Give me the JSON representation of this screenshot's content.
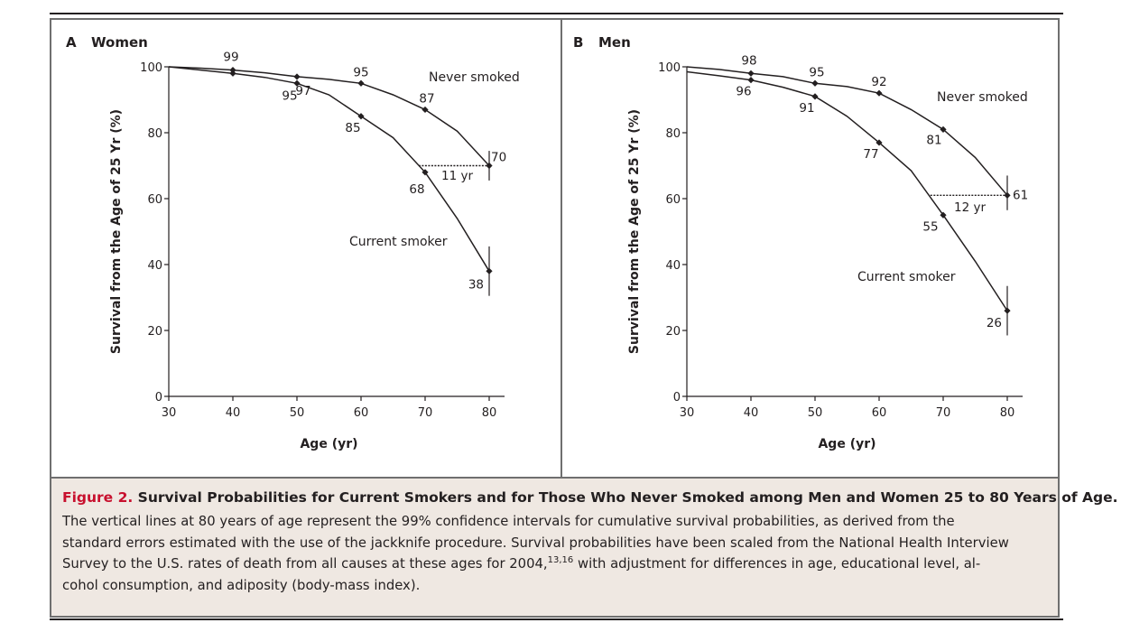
{
  "caption": {
    "figure_number": "Figure 2.",
    "title": "Survival Probabilities for Current Smokers and for Those Who Never Smoked among Men and Women 25 to 80 Years of Age.",
    "body_line1": "The vertical lines at 80 years of age represent the 99% confidence intervals for cumulative survival probabilities, as derived from the",
    "body_line2": "standard errors estimated with the use of the jackknife procedure. Survival probabilities have been scaled from the National Health Interview",
    "body_line3a": "Survey to the U.S. rates of death from all causes at these ages for 2004,",
    "body_line3_sup": "13,16",
    "body_line3b": " with adjustment for differences in age, educational level, al-",
    "body_line4": "cohol consumption, and adiposity (body-mass index)."
  },
  "chart_data": [
    {
      "type": "line",
      "panel_letter": "A",
      "title": "Women",
      "xlabel": "Age (yr)",
      "ylabel": "Survival from the Age of 25 Yr (%)",
      "xlim": [
        30,
        80
      ],
      "ylim": [
        0,
        100
      ],
      "x_ticks": [
        "30",
        "40",
        "50",
        "60",
        "70",
        "80"
      ],
      "y_ticks": [
        "0",
        "20",
        "40",
        "60",
        "80",
        "100"
      ],
      "series": [
        {
          "name": "Never smoked",
          "x": [
            30,
            35,
            40,
            45,
            50,
            55,
            60,
            65,
            70,
            75,
            80
          ],
          "y": [
            100,
            99.6,
            99,
            98.2,
            97,
            96.2,
            95,
            91.5,
            87,
            80.5,
            70
          ],
          "markers": [
            {
              "x": 40,
              "y": 99,
              "label": "99"
            },
            {
              "x": 50,
              "y": 97,
              "label": "97"
            },
            {
              "x": 60,
              "y": 95,
              "label": "95"
            },
            {
              "x": 70,
              "y": 87,
              "label": "87"
            },
            {
              "x": 80,
              "y": 70,
              "label": "70"
            }
          ],
          "ci_80": [
            65.5,
            74.5
          ]
        },
        {
          "name": "Current smoker",
          "x": [
            30,
            35,
            40,
            45,
            50,
            55,
            60,
            65,
            70,
            75,
            80
          ],
          "y": [
            100,
            99,
            98,
            96.8,
            95,
            91.5,
            85,
            78.5,
            68,
            54,
            38
          ],
          "markers": [
            {
              "x": 40,
              "y": 98,
              "label": ""
            },
            {
              "x": 50,
              "y": 95,
              "label": "95"
            },
            {
              "x": 60,
              "y": 85,
              "label": "85"
            },
            {
              "x": 70,
              "y": 68,
              "label": "68"
            },
            {
              "x": 80,
              "y": 38,
              "label": "38"
            }
          ],
          "ci_80": [
            30.5,
            45.5
          ]
        }
      ],
      "gap": {
        "label": "11 yr",
        "from_age": 69,
        "to_age": 80,
        "level": 70
      }
    },
    {
      "type": "line",
      "panel_letter": "B",
      "title": "Men",
      "xlabel": "Age (yr)",
      "ylabel": "Survival from the Age of 25 Yr (%)",
      "xlim": [
        30,
        80
      ],
      "ylim": [
        0,
        100
      ],
      "x_ticks": [
        "30",
        "40",
        "50",
        "60",
        "70",
        "80"
      ],
      "y_ticks": [
        "0",
        "20",
        "40",
        "60",
        "80",
        "100"
      ],
      "series": [
        {
          "name": "Never smoked",
          "x": [
            30,
            35,
            40,
            45,
            50,
            55,
            60,
            65,
            70,
            75,
            80
          ],
          "y": [
            100,
            99.2,
            98,
            97,
            95,
            94,
            92,
            87,
            81,
            72.5,
            61
          ],
          "markers": [
            {
              "x": 40,
              "y": 98,
              "label": "98"
            },
            {
              "x": 50,
              "y": 95,
              "label": "95"
            },
            {
              "x": 60,
              "y": 92,
              "label": "92"
            },
            {
              "x": 70,
              "y": 81,
              "label": "81"
            },
            {
              "x": 80,
              "y": 61,
              "label": "61"
            }
          ],
          "ci_80": [
            56.5,
            67
          ]
        },
        {
          "name": "Current smoker",
          "x": [
            30,
            35,
            40,
            45,
            50,
            55,
            60,
            65,
            70,
            75,
            80
          ],
          "y": [
            98.5,
            97.3,
            96,
            93.8,
            91,
            85,
            77,
            68.5,
            55,
            41,
            26
          ],
          "markers": [
            {
              "x": 40,
              "y": 96,
              "label": "96"
            },
            {
              "x": 50,
              "y": 91,
              "label": "91"
            },
            {
              "x": 60,
              "y": 77,
              "label": "77"
            },
            {
              "x": 70,
              "y": 55,
              "label": "55"
            },
            {
              "x": 80,
              "y": 26,
              "label": "26"
            }
          ],
          "ci_80": [
            18.5,
            33.5
          ]
        }
      ],
      "gap": {
        "label": "12 yr",
        "from_age": 68,
        "to_age": 80,
        "level": 61
      }
    }
  ]
}
